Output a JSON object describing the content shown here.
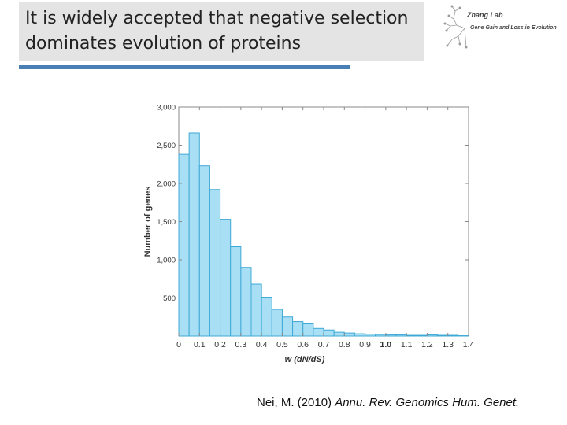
{
  "slide": {
    "title": "It is widely accepted that negative selection\ndominates evolution of proteins",
    "logo_name": "Zhang Lab",
    "logo_subtitle": "Gene Gain and Loss in Evolution",
    "citation_authors": "Nei, M. (2010) ",
    "citation_journal": "Annu. Rev. Genomics Hum. Genet."
  },
  "colors": {
    "title_bar": "#4a7fb5",
    "bar_fill": "#a8dff5",
    "bar_stroke": "#3fa9d6"
  },
  "chart_data": {
    "type": "bar",
    "title": "",
    "xlabel": "w (dN/dS)",
    "ylabel": "Number of genes",
    "bin_width": 0.05,
    "xlim": [
      0,
      1.4
    ],
    "ylim": [
      0,
      3000
    ],
    "x_ticks": [
      "0",
      "0.1",
      "0.2",
      "0.3",
      "0.4",
      "0.5",
      "0.6",
      "0.7",
      "0.8",
      "0.9",
      "1.0",
      "1.1",
      "1.2",
      "1.3",
      "1.4"
    ],
    "y_ticks": [
      "500",
      "1,000",
      "1,500",
      "2,000",
      "2,500",
      "3,000"
    ],
    "y_tick_values": [
      500,
      1000,
      1500,
      2000,
      2500,
      3000
    ],
    "bins": [
      0,
      0.05,
      0.1,
      0.15,
      0.2,
      0.25,
      0.3,
      0.35,
      0.4,
      0.45,
      0.5,
      0.55,
      0.6,
      0.65,
      0.7,
      0.75,
      0.8,
      0.85,
      0.9,
      0.95,
      1.0,
      1.05,
      1.1,
      1.15,
      1.2,
      1.25,
      1.3,
      1.35
    ],
    "values": [
      2380,
      2660,
      2230,
      1920,
      1530,
      1170,
      900,
      680,
      510,
      350,
      250,
      190,
      160,
      100,
      80,
      50,
      40,
      30,
      25,
      20,
      15,
      15,
      10,
      10,
      15,
      10,
      10,
      5
    ]
  }
}
